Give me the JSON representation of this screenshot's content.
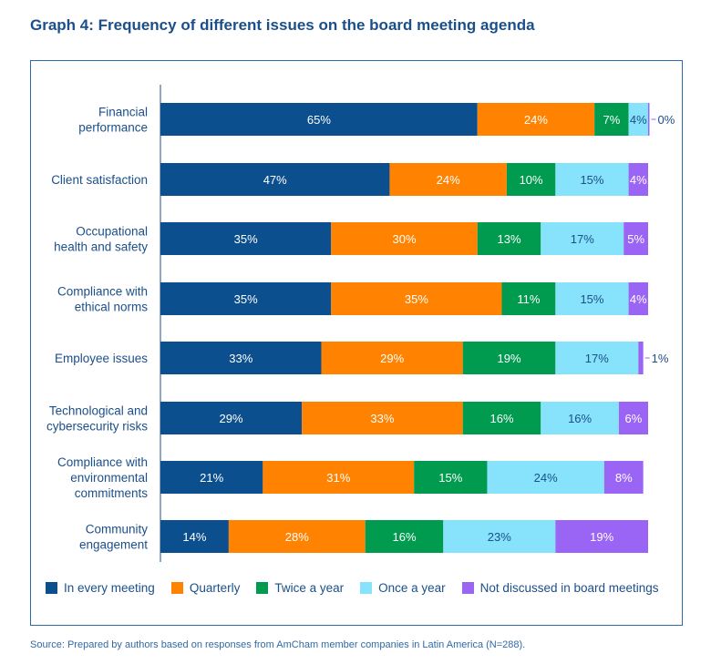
{
  "chart_data": {
    "type": "bar",
    "orientation": "horizontal",
    "stacked": true,
    "title": "Graph 4: Frequency of different issues on the board meeting agenda",
    "xlabel": "",
    "ylabel": "",
    "xlim": [
      0,
      100
    ],
    "grid": false,
    "legend_position": "bottom",
    "categories": [
      [
        "Financial",
        "performance"
      ],
      [
        "Client satisfaction"
      ],
      [
        "Occupational",
        "health and safety"
      ],
      [
        "Compliance with",
        "ethical norms"
      ],
      [
        "Employee issues"
      ],
      [
        "Technological and",
        "cybersecurity risks"
      ],
      [
        "Compliance with",
        "environmental",
        "commitments"
      ],
      [
        "Community",
        "engagement"
      ]
    ],
    "series": [
      {
        "name": "In every meeting",
        "color": "#0b4f8f",
        "label_color": "#ffffff",
        "values": [
          65,
          47,
          35,
          35,
          33,
          29,
          21,
          14
        ]
      },
      {
        "name": "Quarterly",
        "color": "#ff8300",
        "label_color": "#ffffff",
        "values": [
          24,
          24,
          30,
          35,
          29,
          33,
          31,
          28
        ]
      },
      {
        "name": "Twice a year",
        "color": "#009b4f",
        "label_color": "#ffffff",
        "values": [
          7,
          10,
          13,
          11,
          19,
          16,
          15,
          16
        ]
      },
      {
        "name": "Once a year",
        "color": "#86e3fb",
        "label_color": "#1b4f8a",
        "values": [
          4,
          15,
          17,
          15,
          17,
          16,
          24,
          23
        ]
      },
      {
        "name": "Not discussed in board meetings",
        "color": "#9a64f5",
        "label_color": "#ffffff",
        "values": [
          0,
          4,
          5,
          4,
          1,
          6,
          8,
          19
        ]
      }
    ],
    "outside_labels": [
      {
        "category_index": 0,
        "series_index": 4,
        "text": "0%"
      },
      {
        "category_index": 4,
        "series_index": 4,
        "text": "1%"
      }
    ]
  },
  "source": "Source: Prepared by authors based on responses from AmCham member companies in Latin America (N=288)."
}
